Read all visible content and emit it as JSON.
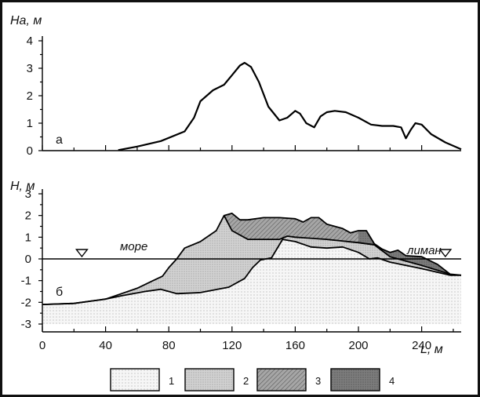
{
  "colors": {
    "layer1": "#f3f3f3",
    "layer2": "#d4d4d4",
    "layer3": "#a8a8a8",
    "layer4": "#7a7a7a",
    "line": "#000000"
  },
  "chart_data": [
    {
      "type": "line",
      "panel_label": "а",
      "ylabel": "Hа, м",
      "xlim": [
        0,
        265
      ],
      "ylim": [
        0,
        4
      ],
      "yticks": [
        "0",
        "1",
        "2",
        "3",
        "4"
      ],
      "series": [
        {
          "x": [
            48,
            60,
            75,
            90,
            96,
            100,
            108,
            115,
            120,
            125,
            128,
            132,
            137,
            143,
            150,
            155,
            160,
            163,
            167,
            172,
            176,
            180,
            185,
            192,
            200,
            208,
            215,
            222,
            227,
            230,
            233,
            236,
            240,
            246,
            255,
            265
          ],
          "y": [
            0.02,
            0.15,
            0.35,
            0.7,
            1.2,
            1.8,
            2.2,
            2.4,
            2.75,
            3.1,
            3.2,
            3.05,
            2.5,
            1.6,
            1.1,
            1.2,
            1.45,
            1.35,
            1.0,
            0.85,
            1.25,
            1.4,
            1.45,
            1.4,
            1.2,
            0.95,
            0.9,
            0.9,
            0.85,
            0.45,
            0.75,
            1.0,
            0.95,
            0.6,
            0.3,
            0.05
          ]
        }
      ]
    },
    {
      "type": "area",
      "panel_label": "б",
      "ylabel": "Н, м",
      "xlabel": "L, м",
      "xlim": [
        0,
        265
      ],
      "ylim": [
        -3,
        3
      ],
      "xticks": [
        "0",
        "40",
        "80",
        "120",
        "160",
        "200",
        "240"
      ],
      "yticks": [
        "-3",
        "-2",
        "-1",
        "0",
        "1",
        "2",
        "3"
      ],
      "annotations": [
        "море",
        "лиман"
      ],
      "water_level": 0,
      "water_markers_x": [
        25,
        255
      ],
      "legend": [
        "1",
        "2",
        "3",
        "4"
      ],
      "bottom_line": {
        "x": [
          0,
          20,
          40,
          50,
          65,
          75,
          85,
          100,
          118,
          128,
          133,
          138,
          145,
          152,
          160,
          170,
          180,
          190,
          200,
          207,
          212,
          220,
          240,
          258,
          265
        ],
        "y": [
          -2.1,
          -2.05,
          -1.85,
          -1.7,
          -1.5,
          -1.4,
          -1.6,
          -1.55,
          -1.3,
          -0.9,
          -0.4,
          -0.05,
          0.05,
          0.9,
          0.8,
          0.55,
          0.5,
          0.55,
          0.3,
          0.0,
          0.05,
          -0.15,
          -0.45,
          -0.75,
          -0.75
        ]
      },
      "surface_line": {
        "x": [
          0,
          20,
          40,
          50,
          60,
          70,
          76,
          80,
          85,
          90,
          100,
          110,
          115,
          120,
          125,
          130,
          140,
          150,
          160,
          165,
          170,
          175,
          180,
          190,
          195,
          200,
          205,
          210,
          215,
          220,
          225,
          230,
          240,
          250,
          258,
          265
        ],
        "y": [
          -2.1,
          -2.05,
          -1.85,
          -1.6,
          -1.35,
          -1.0,
          -0.8,
          -0.4,
          0.0,
          0.5,
          0.8,
          1.3,
          2.0,
          2.1,
          1.8,
          1.8,
          1.9,
          1.9,
          1.85,
          1.7,
          1.9,
          1.9,
          1.6,
          1.4,
          1.2,
          1.3,
          1.3,
          0.7,
          0.45,
          0.3,
          0.4,
          0.15,
          0.1,
          -0.25,
          -0.7,
          -0.75
        ]
      },
      "boundary_2_3": {
        "x": [
          115,
          120,
          130,
          140,
          150,
          155,
          160,
          180,
          200,
          205,
          210
        ],
        "y": [
          2.0,
          1.3,
          0.9,
          0.9,
          0.9,
          1.05,
          1.0,
          0.9,
          0.75,
          0.7,
          0.65
        ]
      },
      "boundary_3_4": {
        "x": [
          200,
          205,
          210,
          220,
          240,
          258
        ],
        "y": [
          0.75,
          0.7,
          0.65,
          0.1,
          -0.3,
          -0.7
        ]
      }
    }
  ]
}
